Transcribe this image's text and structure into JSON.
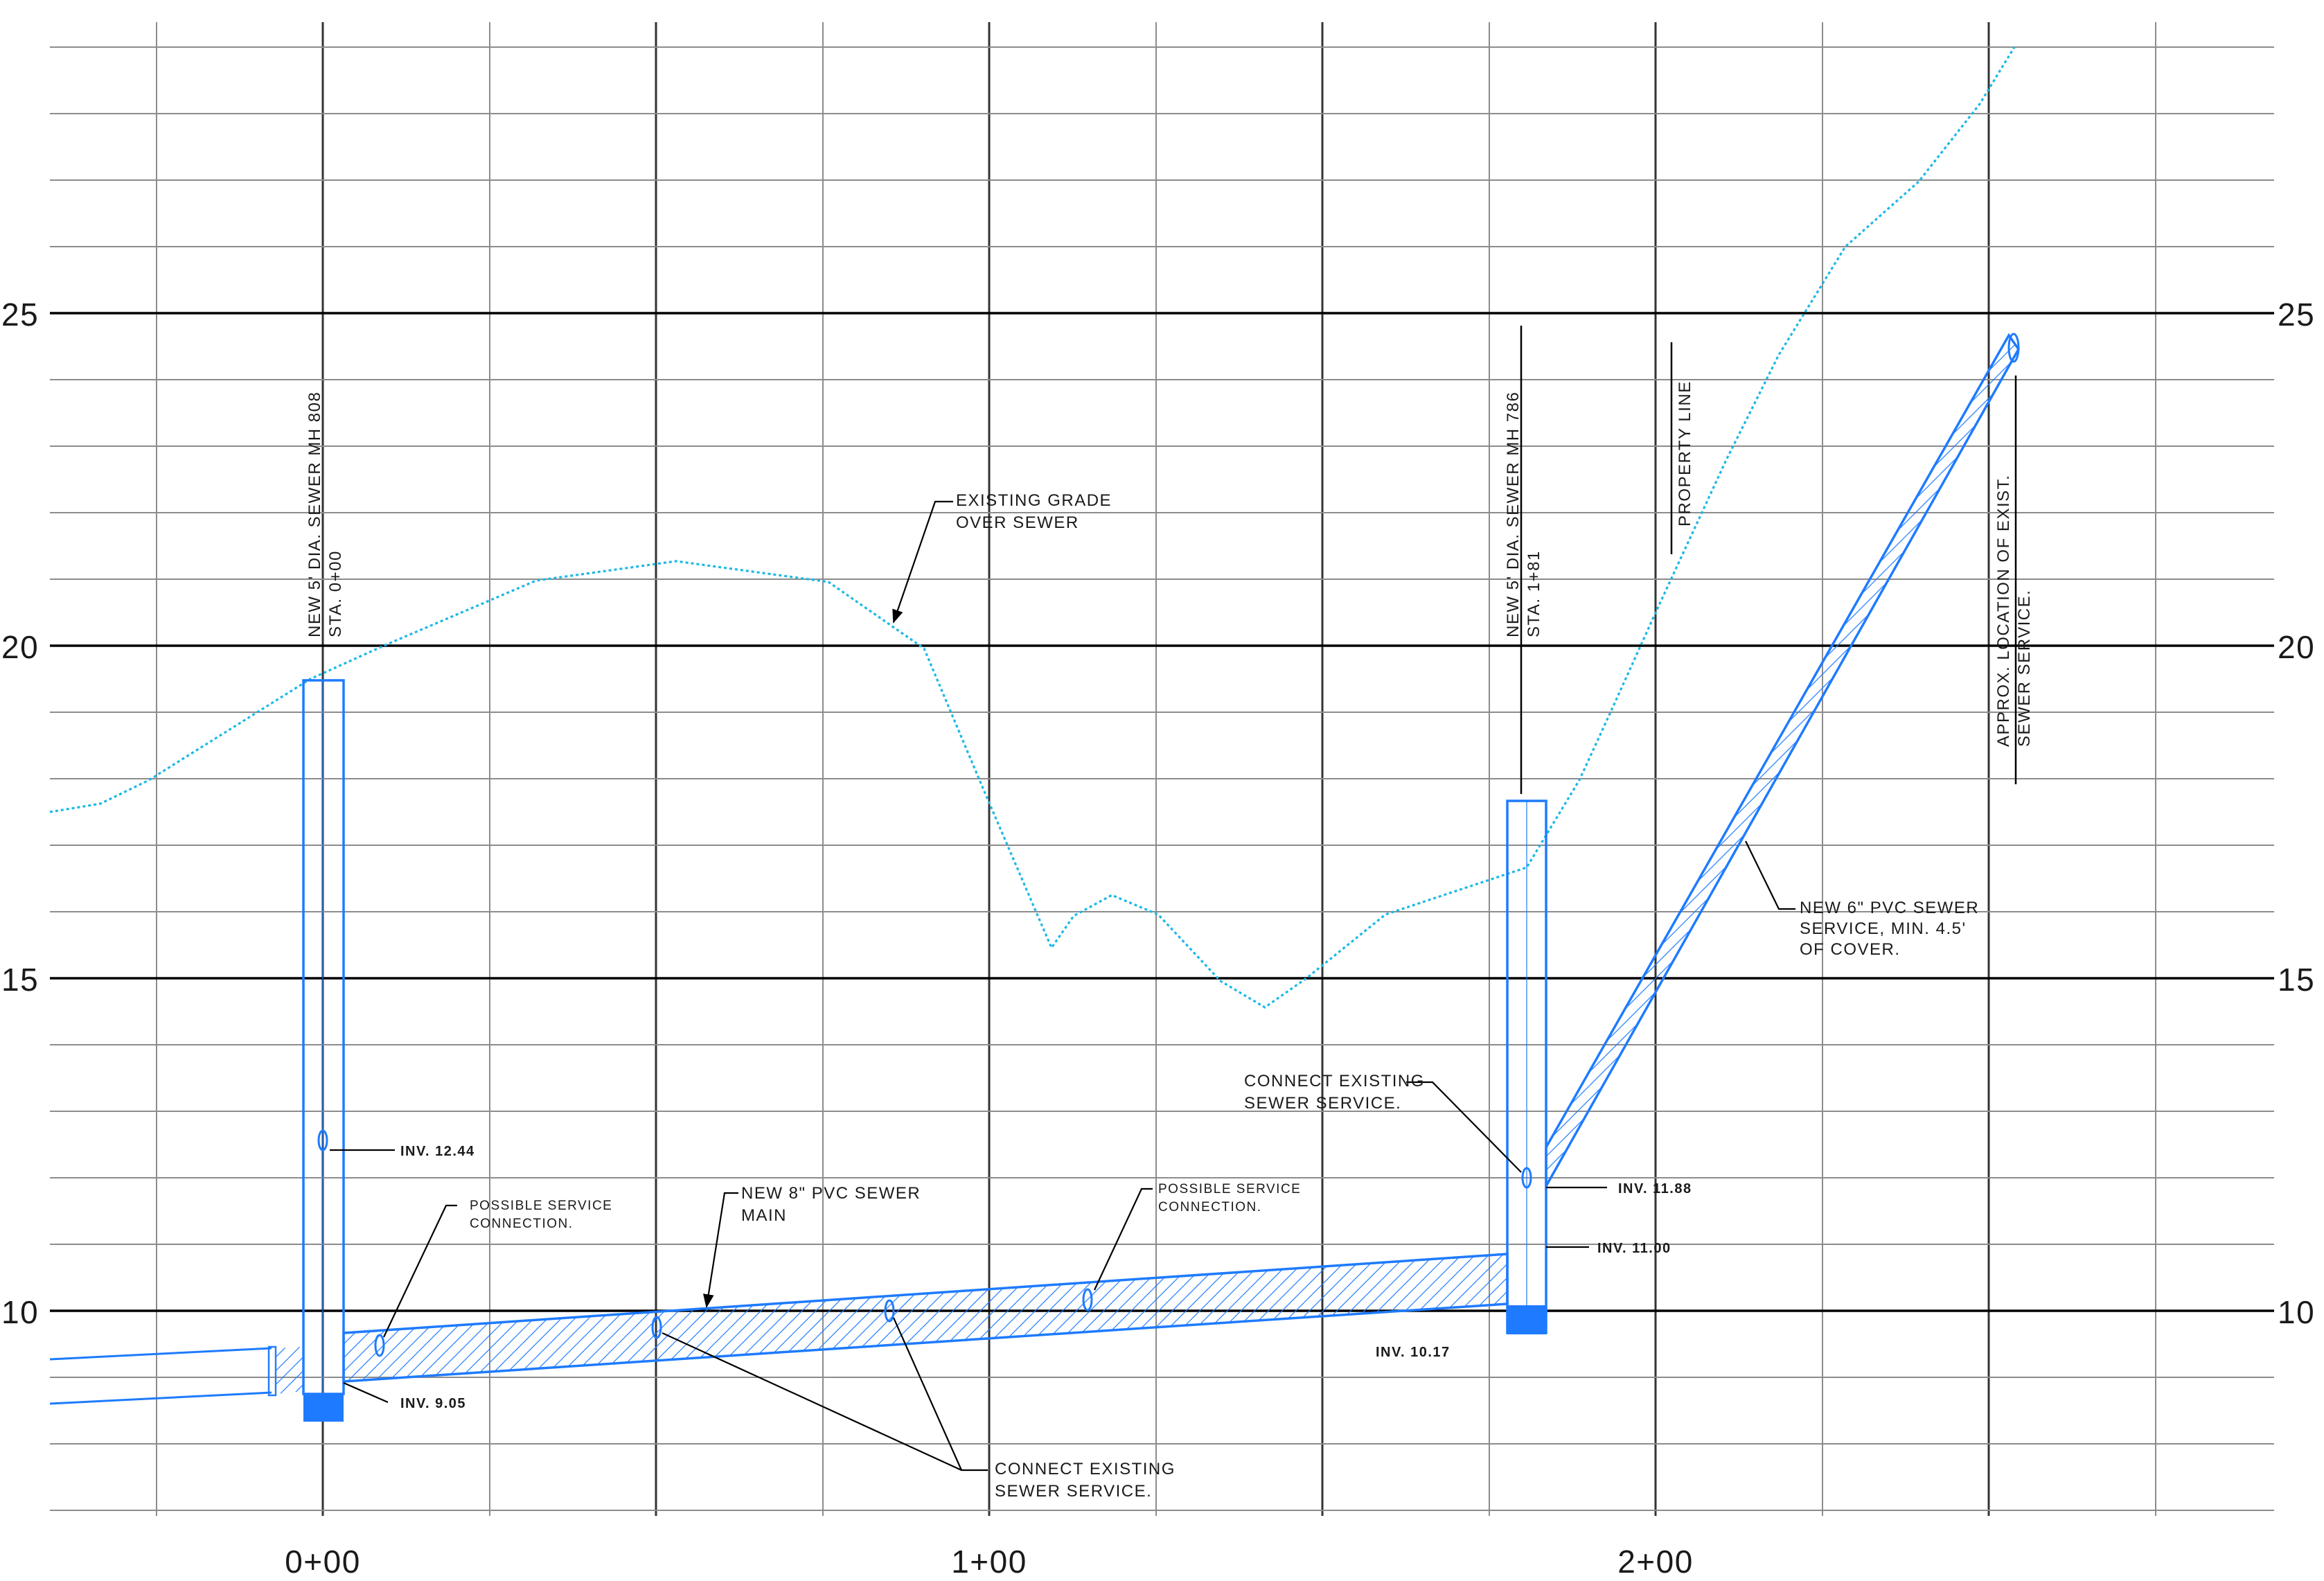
{
  "colors": {
    "grid": "#8c8c8c",
    "grid_major": "#000000",
    "sewer": "#1e7bff",
    "grade": "#1ab8e6",
    "text": "#1a1a1a"
  },
  "elevation_labels": [
    "25",
    "20",
    "15",
    "10"
  ],
  "station_labels": [
    "0+00",
    "1+00",
    "2+00"
  ],
  "labels": {
    "mh808_line1": "NEW 5' DIA. SEWER MH 808",
    "mh808_line2": "STA. 0+00",
    "mh786_line1": "NEW 5' DIA. SEWER MH 786",
    "mh786_line2": "STA. 1+81",
    "property_line": "PROPERTY LINE",
    "exist_service_line1": "APPROX. LOCATION OF EXIST.",
    "exist_service_line2": "SEWER SERVICE.",
    "grade_line1": "EXISTING GRADE",
    "grade_line2": "OVER SEWER",
    "pvc6_line1": "NEW 6\" PVC SEWER",
    "pvc6_line2": "SERVICE, MIN. 4.5'",
    "pvc6_line3": "OF COVER.",
    "pvc8_line1": "NEW 8\" PVC SEWER",
    "pvc8_line2": "MAIN",
    "possible1_line1": "POSSIBLE SERVICE",
    "possible1_line2": "CONNECTION.",
    "possible2_line1": "POSSIBLE SERVICE",
    "possible2_line2": "CONNECTION.",
    "connect_top_line1": "CONNECT EXISTING",
    "connect_top_line2": "SEWER SERVICE.",
    "connect_bottom_line1": "CONNECT EXISTING",
    "connect_bottom_line2": "SEWER SERVICE.",
    "inv_1244": "INV.  12.44",
    "inv_905": "INV.  9.05",
    "inv_1188": "INV.  11.88",
    "inv_1100": "INV.  11.00",
    "inv_1017": "INV.  10.17"
  }
}
